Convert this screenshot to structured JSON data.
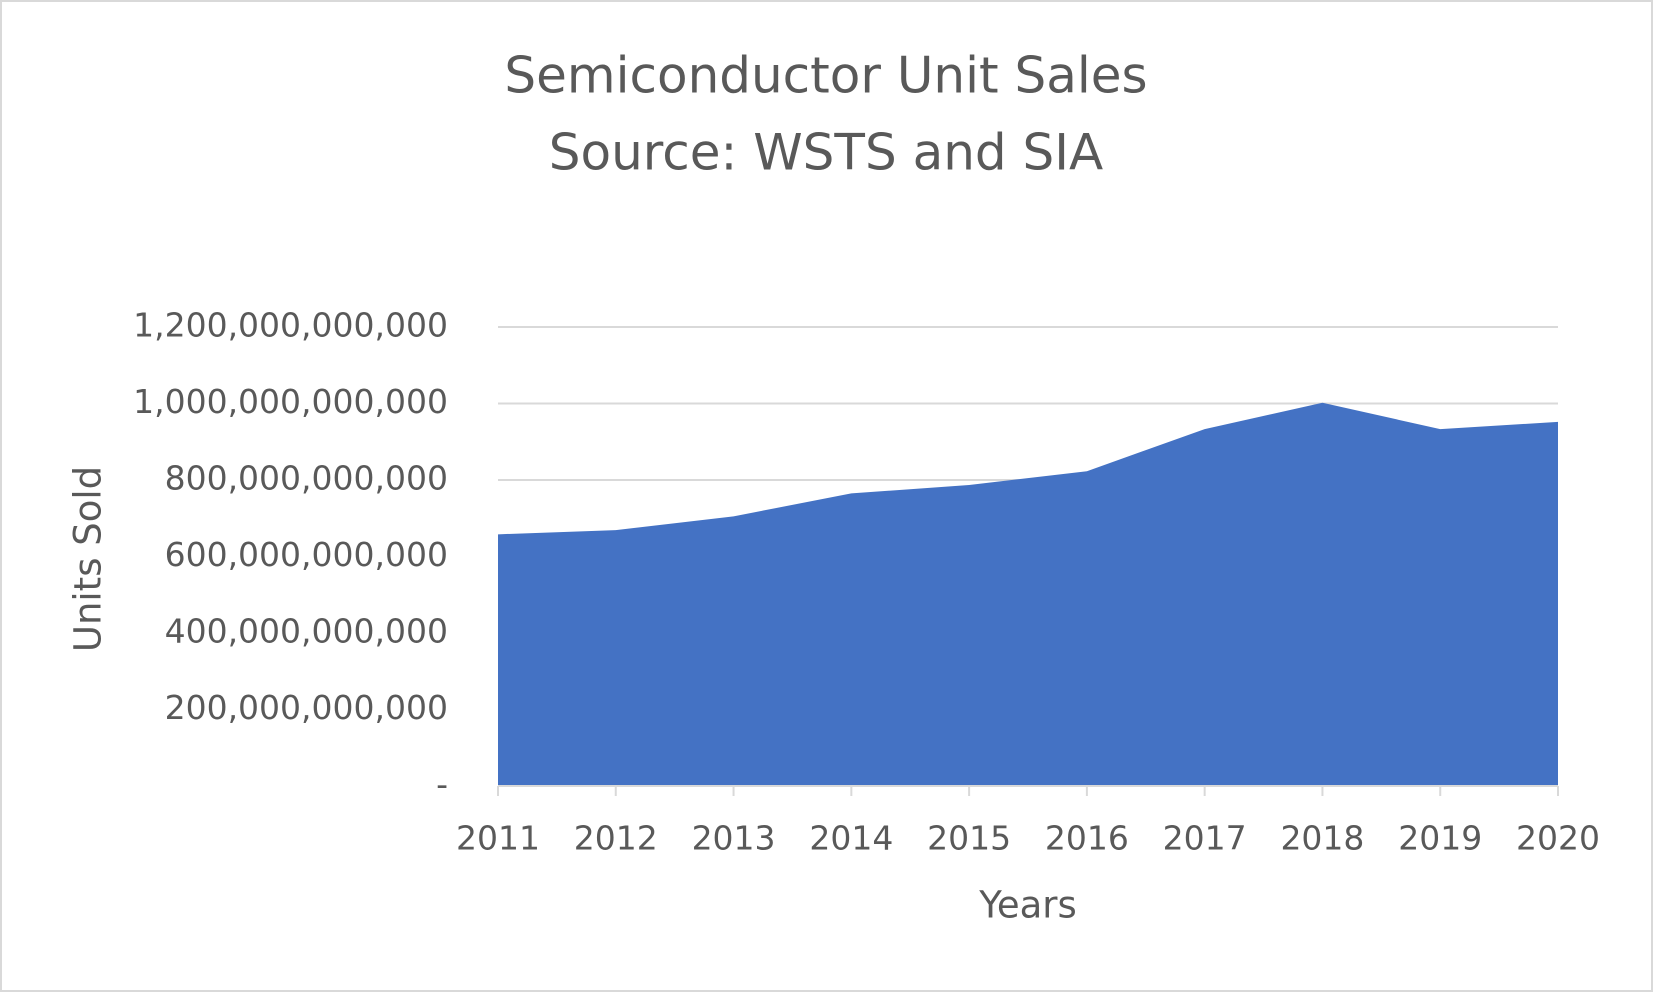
{
  "chart_data": {
    "type": "area",
    "title": "Semiconductor Unit Sales",
    "subtitle": "Source:  WSTS and SIA",
    "x_label": "Years",
    "y_label": "Units Sold",
    "categories": [
      "2011",
      "2012",
      "2013",
      "2014",
      "2015",
      "2016",
      "2017",
      "2018",
      "2019",
      "2020"
    ],
    "values": [
      658000000000,
      669000000000,
      705000000000,
      765000000000,
      787000000000,
      823000000000,
      933000000000,
      1002000000000,
      933000000000,
      952000000000
    ],
    "color": "#4472c4",
    "ylim": [
      0,
      1200000000000
    ],
    "yticks": [
      {
        "value": 0,
        "label": "-"
      },
      {
        "value": 200000000000,
        "label": "200,000,000,000"
      },
      {
        "value": 400000000000,
        "label": "400,000,000,000"
      },
      {
        "value": 600000000000,
        "label": "600,000,000,000"
      },
      {
        "value": 800000000000,
        "label": "800,000,000,000"
      },
      {
        "value": 1000000000000,
        "label": "1,000,000,000,000"
      },
      {
        "value": 1200000000000,
        "label": "1,200,000,000,000"
      }
    ],
    "grid": true
  }
}
